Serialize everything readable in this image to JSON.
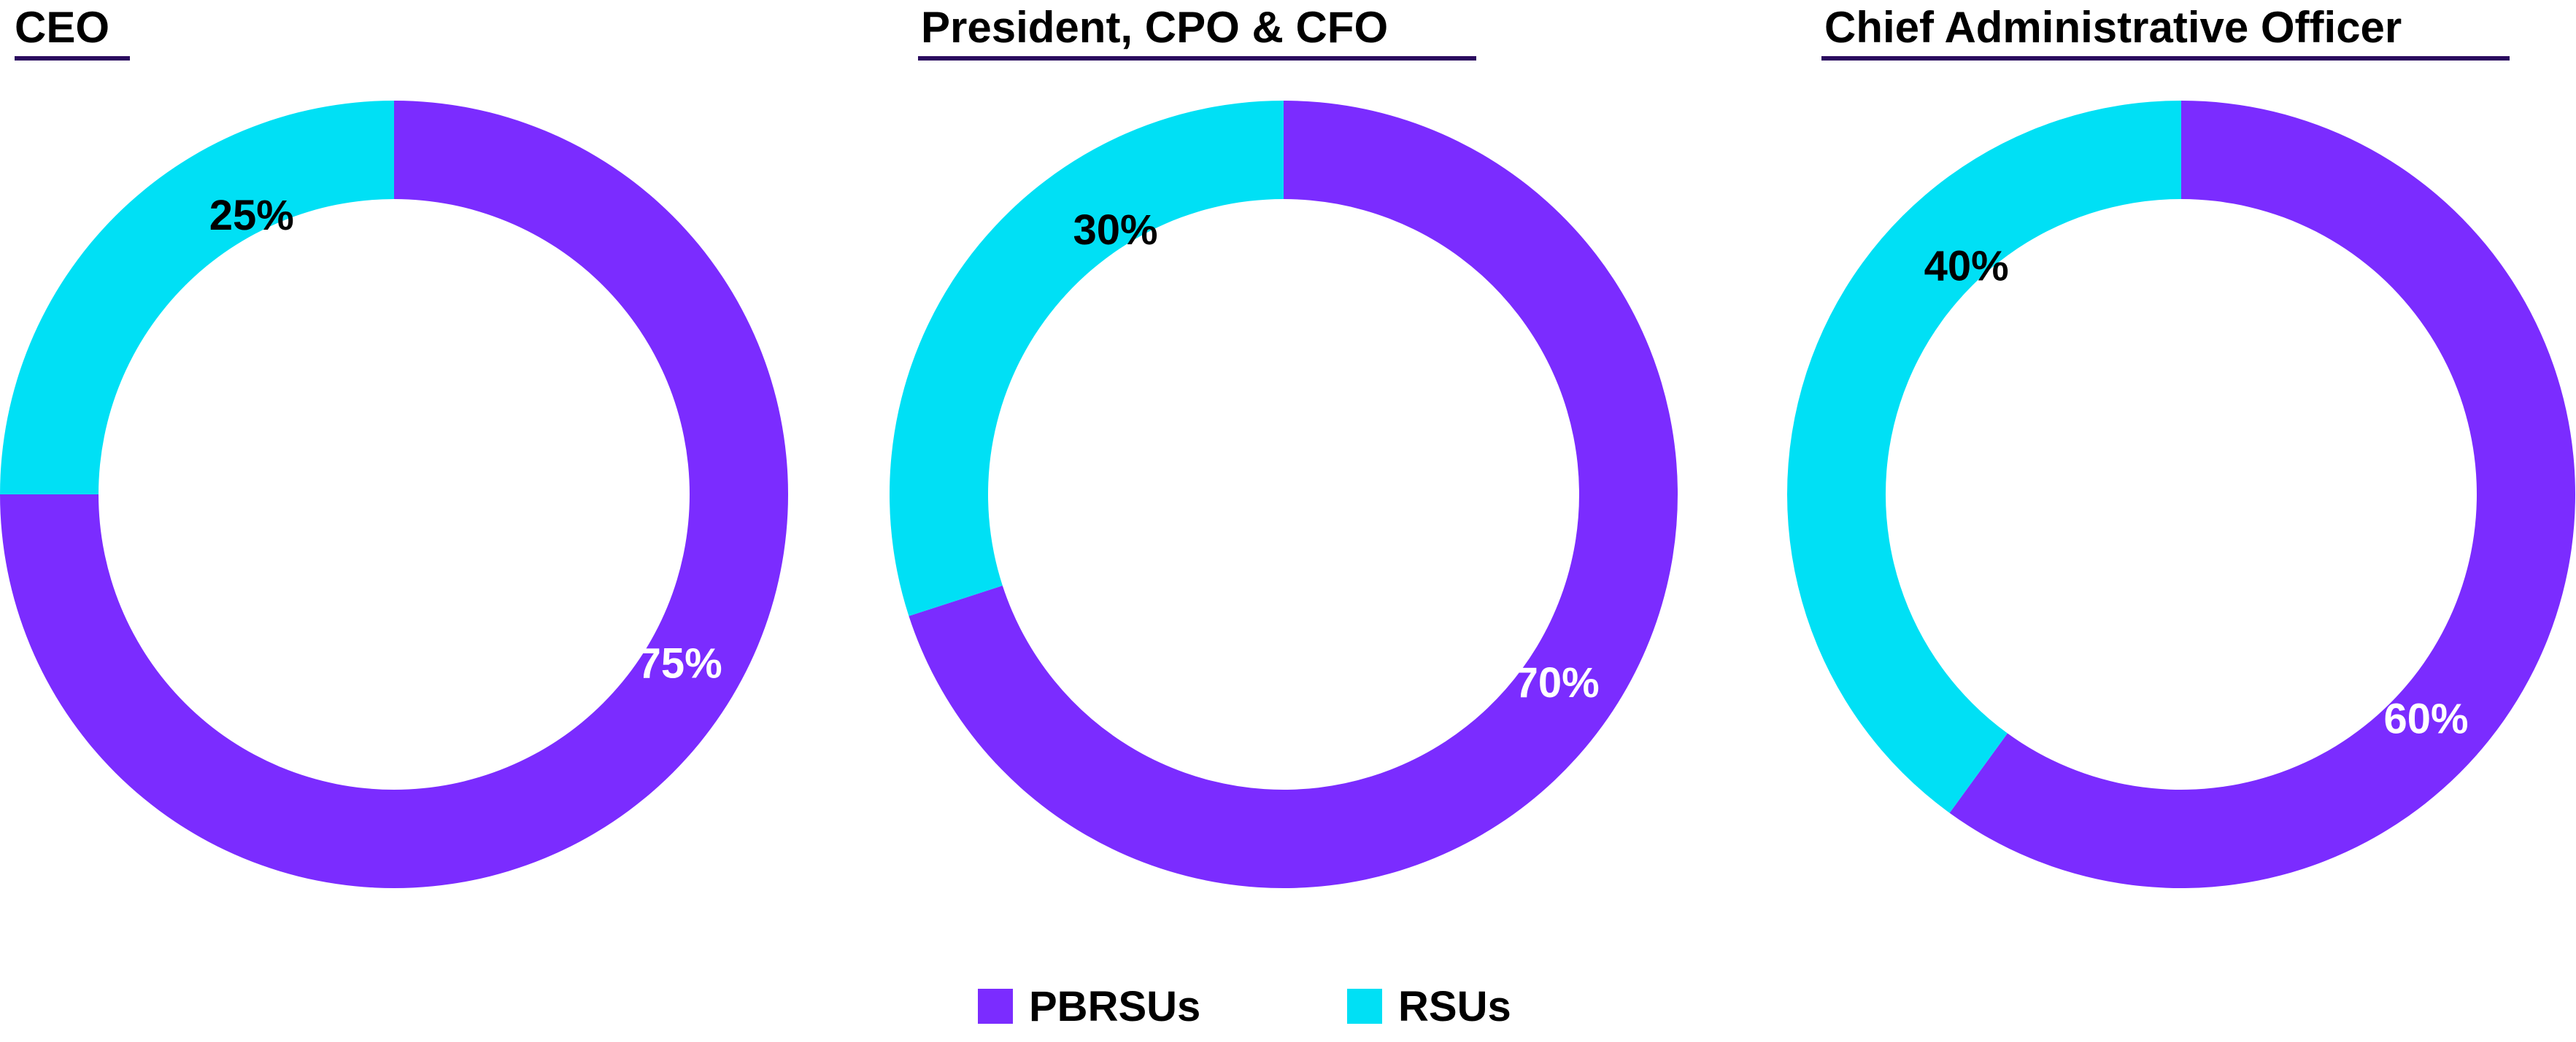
{
  "chart_data": [
    {
      "type": "pie",
      "title": "CEO",
      "slices": [
        {
          "label": "PBRSUs",
          "value": 75,
          "display": "75%"
        },
        {
          "label": "RSUs",
          "value": 25,
          "display": "25%"
        }
      ]
    },
    {
      "type": "pie",
      "title": "President, CPO & CFO",
      "slices": [
        {
          "label": "PBRSUs",
          "value": 70,
          "display": "70%"
        },
        {
          "label": "RSUs",
          "value": 30,
          "display": "30%"
        }
      ]
    },
    {
      "type": "pie",
      "title": "Chief Administrative Officer",
      "slices": [
        {
          "label": "PBRSUs",
          "value": 60,
          "display": "60%"
        },
        {
          "label": "RSUs",
          "value": 40,
          "display": "40%"
        }
      ]
    }
  ],
  "legend": {
    "position": "bottom-center",
    "items": [
      {
        "label": "PBRSUs",
        "color": "#7b2cff"
      },
      {
        "label": "RSUs",
        "color": "#00e0f5"
      }
    ]
  },
  "colors": {
    "PBRSUs": "#7b2cff",
    "RSUs": "#00e0f5",
    "title_underline": "#2a0a5e",
    "label_on_pbrsus": "#ffffff",
    "label_on_rsus": "#000000"
  }
}
